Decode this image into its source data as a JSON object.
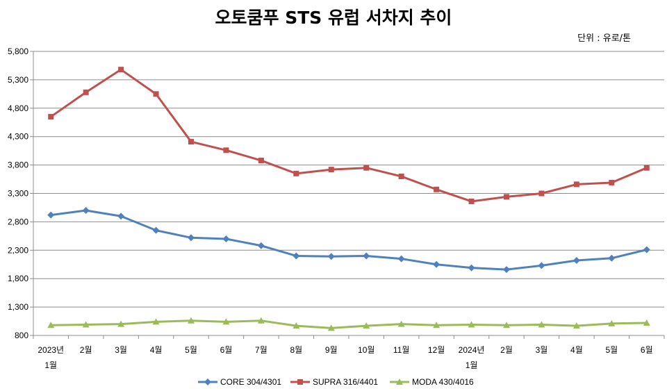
{
  "chart_data": {
    "type": "line",
    "title": "오토쿰푸 STS 유럽 서차지 추이",
    "unit_note": "단위 : 유로/톤",
    "categories": [
      [
        "2023년",
        "1월"
      ],
      [
        "2월"
      ],
      [
        "3월"
      ],
      [
        "4월"
      ],
      [
        "5월"
      ],
      [
        "6월"
      ],
      [
        "7월"
      ],
      [
        "8월"
      ],
      [
        "9월"
      ],
      [
        "10월"
      ],
      [
        "11월"
      ],
      [
        "12월"
      ],
      [
        "2024년",
        "1월"
      ],
      [
        "2월"
      ],
      [
        "3월"
      ],
      [
        "4월"
      ],
      [
        "5월"
      ],
      [
        "6월"
      ]
    ],
    "ylim": [
      800,
      5800
    ],
    "yticks": [
      "800",
      "1,300",
      "1,800",
      "2,300",
      "2,800",
      "3,300",
      "3,800",
      "4,300",
      "4,800",
      "5,300",
      "5,800"
    ],
    "ytick_values": [
      800,
      1300,
      1800,
      2300,
      2800,
      3300,
      3800,
      4300,
      4800,
      5300,
      5800
    ],
    "grid": true,
    "legend_position": "bottom",
    "series": [
      {
        "name": "CORE 304/4301",
        "color": "#4F81BD",
        "marker": "diamond",
        "values": [
          2920,
          3000,
          2900,
          2650,
          2520,
          2500,
          2380,
          2200,
          2190,
          2200,
          2150,
          2050,
          1990,
          1960,
          2030,
          2120,
          2160,
          2310
        ]
      },
      {
        "name": "SUPRA 316/4401",
        "color": "#C0504D",
        "marker": "square",
        "values": [
          4650,
          5080,
          5480,
          5050,
          4210,
          4060,
          3880,
          3650,
          3720,
          3750,
          3600,
          3370,
          3160,
          3240,
          3300,
          3460,
          3490,
          3750
        ]
      },
      {
        "name": "MODA 430/4016",
        "color": "#9BBB59",
        "marker": "triangle",
        "values": [
          980,
          990,
          1000,
          1040,
          1060,
          1040,
          1060,
          970,
          930,
          970,
          1000,
          980,
          990,
          980,
          990,
          970,
          1010,
          1020
        ]
      }
    ]
  }
}
